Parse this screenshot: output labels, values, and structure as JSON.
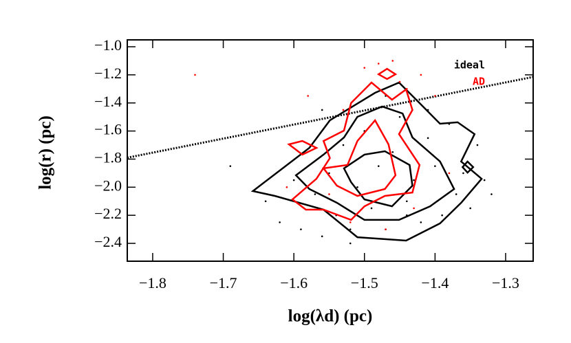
{
  "chart_data": {
    "type": "contour",
    "xlabel": "log(λd) (pc)",
    "ylabel": "log(r) (pc)",
    "xlim": [
      -1.836,
      -1.261
    ],
    "ylim": [
      -2.527,
      -0.951
    ],
    "xticks": [
      {
        "value": -1.8,
        "label": "−1.8"
      },
      {
        "value": -1.7,
        "label": "−1.7"
      },
      {
        "value": -1.6,
        "label": "−1.6"
      },
      {
        "value": -1.5,
        "label": "−1.5"
      },
      {
        "value": -1.4,
        "label": "−1.4"
      },
      {
        "value": -1.3,
        "label": "−1.3"
      }
    ],
    "yticks": [
      {
        "value": -2.4,
        "label": "−2.4"
      },
      {
        "value": -2.2,
        "label": "−2.2"
      },
      {
        "value": -2.0,
        "label": "−2.0"
      },
      {
        "value": -1.8,
        "label": "−1.8"
      },
      {
        "value": -1.6,
        "label": "−1.6"
      },
      {
        "value": -1.4,
        "label": "−1.4"
      },
      {
        "value": -1.2,
        "label": "−1.2"
      },
      {
        "value": -1.0,
        "label": "−1.0"
      }
    ],
    "legend": "upper right",
    "fit_line": {
      "x": [
        -1.836,
        -1.261
      ],
      "y": [
        -1.79,
        -1.215
      ],
      "color": "#000000"
    },
    "series": [
      {
        "name": "ideal",
        "color": "#000000",
        "contours": [
          {
            "x": [
              -1.658,
              -1.578,
              -1.549,
              -1.485,
              -1.451,
              -1.422,
              -1.393,
              -1.368,
              -1.344,
              -1.363,
              -1.334,
              -1.363,
              -1.393,
              -1.441,
              -1.51,
              -1.558,
              -1.627
            ],
            "y": [
              -2.028,
              -1.72,
              -1.524,
              -1.328,
              -1.255,
              -1.401,
              -1.548,
              -1.538,
              -1.622,
              -1.817,
              -1.94,
              -2.111,
              -2.258,
              -2.38,
              -2.356,
              -2.16,
              -2.062
            ]
          },
          {
            "x": [
              -1.597,
              -1.558,
              -1.529,
              -1.51,
              -1.475,
              -1.446,
              -1.432,
              -1.393,
              -1.373,
              -1.407,
              -1.451,
              -1.5,
              -1.539,
              -1.578
            ],
            "y": [
              -1.915,
              -1.768,
              -1.646,
              -1.499,
              -1.426,
              -1.475,
              -1.646,
              -1.817,
              -2.013,
              -2.136,
              -2.233,
              -2.233,
              -2.111,
              -2.013
            ]
          },
          {
            "x": [
              -1.529,
              -1.5,
              -1.471,
              -1.436,
              -1.432,
              -1.461,
              -1.5,
              -1.519
            ],
            "y": [
              -1.866,
              -1.768,
              -1.744,
              -1.842,
              -1.989,
              -2.136,
              -2.087,
              -1.964
            ]
          },
          {
            "x": [
              -1.361,
              -1.354,
              -1.346,
              -1.354
            ],
            "y": [
              -1.857,
              -1.818,
              -1.857,
              -1.896
            ]
          }
        ],
        "points": {
          "x": [
            -1.64,
            -1.62,
            -1.6,
            -1.59,
            -1.57,
            -1.56,
            -1.55,
            -1.54,
            -1.53,
            -1.52,
            -1.51,
            -1.5,
            -1.49,
            -1.48,
            -1.47,
            -1.46,
            -1.45,
            -1.44,
            -1.43,
            -1.42,
            -1.41,
            -1.4,
            -1.39,
            -1.38,
            -1.37,
            -1.36,
            -1.35,
            -1.34,
            -1.33,
            -1.32,
            -1.69,
            -1.56,
            -1.47,
            -1.41,
            -1.52,
            -1.44
          ],
          "y": [
            -2.1,
            -2.25,
            -1.95,
            -2.3,
            -2.05,
            -2.35,
            -1.9,
            -2.2,
            -1.7,
            -2.4,
            -2.0,
            -1.6,
            -2.15,
            -1.85,
            -2.3,
            -1.75,
            -1.5,
            -2.1,
            -1.95,
            -2.25,
            -1.65,
            -1.85,
            -2.2,
            -1.55,
            -2.05,
            -1.9,
            -2.15,
            -1.7,
            -1.95,
            -2.05,
            -1.85,
            -1.45,
            -1.35,
            -1.45,
            -2.3,
            -2.2
          ]
        }
      },
      {
        "name": "AD",
        "color": "#ff0000",
        "contours": [
          {
            "x": [
              -1.602,
              -1.568,
              -1.549,
              -1.558,
              -1.529,
              -1.519,
              -1.49,
              -1.461,
              -1.441,
              -1.432,
              -1.451,
              -1.422,
              -1.432,
              -1.471,
              -1.5,
              -1.519,
              -1.558,
              -1.583
            ],
            "y": [
              -2.087,
              -1.94,
              -1.793,
              -1.671,
              -1.597,
              -1.401,
              -1.255,
              -1.377,
              -1.304,
              -1.45,
              -1.622,
              -1.842,
              -2.038,
              -2.062,
              -2.136,
              -2.233,
              -2.16,
              -2.16
            ]
          },
          {
            "x": [
              -1.558,
              -1.524,
              -1.51,
              -1.485,
              -1.466,
              -1.456,
              -1.471,
              -1.51,
              -1.539
            ],
            "y": [
              -1.866,
              -1.842,
              -1.671,
              -1.524,
              -1.695,
              -1.915,
              -2.013,
              -2.062,
              -1.989
            ]
          },
          {
            "x": [
              -1.48,
              -1.468,
              -1.456,
              -1.468
            ],
            "y": [
              -1.196,
              -1.157,
              -1.196,
              -1.23
            ]
          },
          {
            "x": [
              -1.607,
              -1.588,
              -1.568,
              -1.588
            ],
            "y": [
              -1.695,
              -1.671,
              -1.72,
              -1.768
            ]
          }
        ],
        "points": {
          "x": [
            -1.74,
            -1.58,
            -1.55,
            -1.53,
            -1.5,
            -1.48,
            -1.46,
            -1.45,
            -1.44,
            -1.42,
            -1.4,
            -1.47,
            -1.43,
            -1.61,
            -1.52,
            -1.38
          ],
          "y": [
            -1.2,
            -1.35,
            -2.05,
            -1.45,
            -1.15,
            -1.12,
            -1.1,
            -1.25,
            -1.3,
            -1.2,
            -1.35,
            -2.3,
            -2.15,
            -2.0,
            -2.25,
            -1.9
          ]
        }
      }
    ]
  }
}
